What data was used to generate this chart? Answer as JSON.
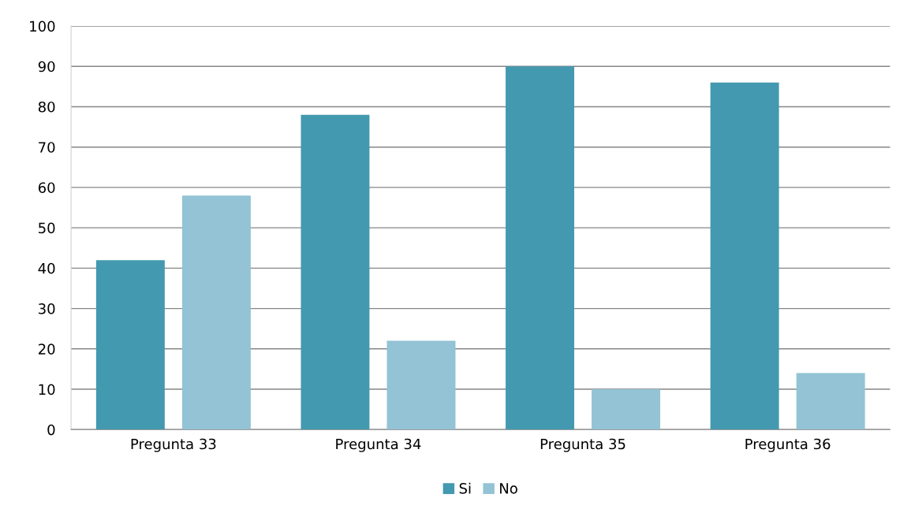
{
  "chart_data": {
    "type": "bar",
    "categories": [
      "Pregunta 33",
      "Pregunta 34",
      "Pregunta 35",
      "Pregunta 36"
    ],
    "series": [
      {
        "name": "Si",
        "color": "#4399b0",
        "values": [
          42,
          78,
          90,
          86
        ]
      },
      {
        "name": "No",
        "color": "#93c3d4",
        "values": [
          58,
          22,
          10,
          14
        ]
      }
    ],
    "ylim": [
      0,
      100
    ],
    "yticks": [
      0,
      10,
      20,
      30,
      40,
      50,
      60,
      70,
      80,
      90,
      100
    ],
    "grid": "y",
    "legend": "bottom"
  }
}
